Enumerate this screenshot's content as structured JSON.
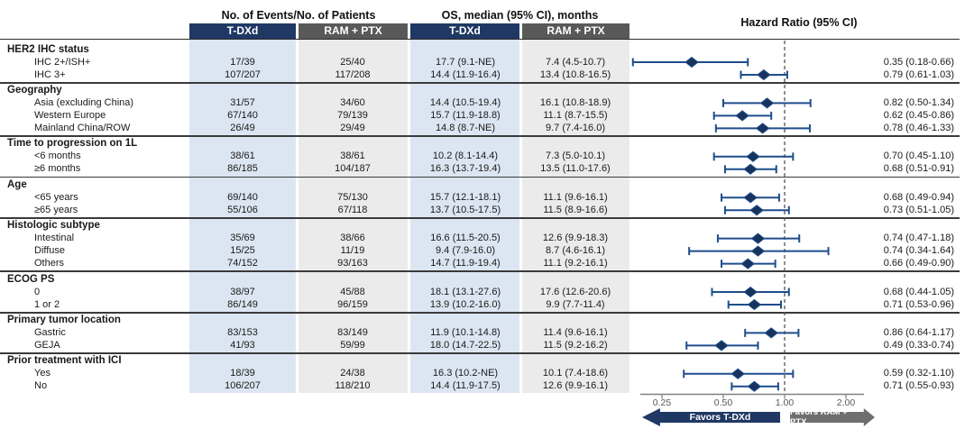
{
  "figure": {
    "events_group_header": "No. of Events/No. of Patients",
    "os_group_header": "OS, median (95% CI), months",
    "hr_header": "Hazard Ratio (95% CI)",
    "arm_tdxd": "T-DXd",
    "arm_ram": "RAM + PTX"
  },
  "axis": {
    "scale": "log",
    "reference_line": 1.0,
    "ticks": [
      0.25,
      0.5,
      1.0,
      2.0
    ],
    "tick_labels": [
      "0.25",
      "0.50",
      "1.00",
      "2.00"
    ]
  },
  "favors": {
    "left": "Favors T-DXd",
    "right": "Favors RAM + PTX"
  },
  "colors": {
    "navy": "#1f3864",
    "header_gray": "#595959",
    "column_light_blue": "#dce6f2",
    "column_light_gray": "#ebebeb",
    "ci_bar": "#1e4d8c",
    "diamond": "#17335d",
    "arrow_gray": "#6e6e6e"
  },
  "sections": [
    {
      "label": "HER2 IHC status",
      "rows": [
        {
          "label": "IHC 2+/ISH+",
          "events_tdxd": "17/39",
          "events_ram": "25/40",
          "os_tdxd": "17.7 (9.1-NE)",
          "os_ram": "7.4 (4.5-10.7)",
          "hr": 0.35,
          "ci": [
            0.18,
            0.66
          ],
          "hr_text": "0.35 (0.18-0.66)"
        },
        {
          "label": "IHC 3+",
          "events_tdxd": "107/207",
          "events_ram": "117/208",
          "os_tdxd": "14.4 (11.9-16.4)",
          "os_ram": "13.4 (10.8-16.5)",
          "hr": 0.79,
          "ci": [
            0.61,
            1.03
          ],
          "hr_text": "0.79 (0.61-1.03)"
        }
      ]
    },
    {
      "label": "Geography",
      "rows": [
        {
          "label": "Asia (excluding China)",
          "events_tdxd": "31/57",
          "events_ram": "34/60",
          "os_tdxd": "14.4 (10.5-19.4)",
          "os_ram": "16.1 (10.8-18.9)",
          "hr": 0.82,
          "ci": [
            0.5,
            1.34
          ],
          "hr_text": "0.82 (0.50-1.34)"
        },
        {
          "label": "Western Europe",
          "events_tdxd": "67/140",
          "events_ram": "79/139",
          "os_tdxd": "15.7 (11.9-18.8)",
          "os_ram": "11.1 (8.7-15.5)",
          "hr": 0.62,
          "ci": [
            0.45,
            0.86
          ],
          "hr_text": "0.62 (0.45-0.86)"
        },
        {
          "label": "Mainland China/ROW",
          "events_tdxd": "26/49",
          "events_ram": "29/49",
          "os_tdxd": "14.8 (8.7-NE)",
          "os_ram": "9.7 (7.4-16.0)",
          "hr": 0.78,
          "ci": [
            0.46,
            1.33
          ],
          "hr_text": "0.78 (0.46-1.33)"
        }
      ]
    },
    {
      "label": "Time to progression on 1L",
      "rows": [
        {
          "label": "<6 months",
          "events_tdxd": "38/61",
          "events_ram": "38/61",
          "os_tdxd": "10.2 (8.1-14.4)",
          "os_ram": "7.3 (5.0-10.1)",
          "hr": 0.7,
          "ci": [
            0.45,
            1.1
          ],
          "hr_text": "0.70 (0.45-1.10)"
        },
        {
          "label": "≥6 months",
          "events_tdxd": "86/185",
          "events_ram": "104/187",
          "os_tdxd": "16.3 (13.7-19.4)",
          "os_ram": "13.5 (11.0-17.6)",
          "hr": 0.68,
          "ci": [
            0.51,
            0.91
          ],
          "hr_text": "0.68 (0.51-0.91)"
        }
      ]
    },
    {
      "label": "Age",
      "rows": [
        {
          "label": "<65 years",
          "events_tdxd": "69/140",
          "events_ram": "75/130",
          "os_tdxd": "15.7 (12.1-18.1)",
          "os_ram": "11.1 (9.6-16.1)",
          "hr": 0.68,
          "ci": [
            0.49,
            0.94
          ],
          "hr_text": "0.68 (0.49-0.94)"
        },
        {
          "label": "≥65 years",
          "events_tdxd": "55/106",
          "events_ram": "67/118",
          "os_tdxd": "13.7 (10.5-17.5)",
          "os_ram": "11.5 (8.9-16.6)",
          "hr": 0.73,
          "ci": [
            0.51,
            1.05
          ],
          "hr_text": "0.73 (0.51-1.05)"
        }
      ]
    },
    {
      "label": "Histologic subtype",
      "rows": [
        {
          "label": "Intestinal",
          "events_tdxd": "35/69",
          "events_ram": "38/66",
          "os_tdxd": "16.6 (11.5-20.5)",
          "os_ram": "12.6 (9.9-18.3)",
          "hr": 0.74,
          "ci": [
            0.47,
            1.18
          ],
          "hr_text": "0.74 (0.47-1.18)"
        },
        {
          "label": "Diffuse",
          "events_tdxd": "15/25",
          "events_ram": "11/19",
          "os_tdxd": "9.4 (7.9-16.0)",
          "os_ram": "8.7 (4.6-16.1)",
          "hr": 0.74,
          "ci": [
            0.34,
            1.64
          ],
          "hr_text": "0.74 (0.34-1.64)"
        },
        {
          "label": "Others",
          "events_tdxd": "74/152",
          "events_ram": "93/163",
          "os_tdxd": "14.7 (11.9-19.4)",
          "os_ram": "11.1 (9.2-16.1)",
          "hr": 0.66,
          "ci": [
            0.49,
            0.9
          ],
          "hr_text": "0.66 (0.49-0.90)"
        }
      ]
    },
    {
      "label": "ECOG PS",
      "rows": [
        {
          "label": "0",
          "events_tdxd": "38/97",
          "events_ram": "45/88",
          "os_tdxd": "18.1 (13.1-27.6)",
          "os_ram": "17.6 (12.6-20.6)",
          "hr": 0.68,
          "ci": [
            0.44,
            1.05
          ],
          "hr_text": "0.68 (0.44-1.05)"
        },
        {
          "label": "1 or 2",
          "events_tdxd": "86/149",
          "events_ram": "96/159",
          "os_tdxd": "13.9 (10.2-16.0)",
          "os_ram": "9.9 (7.7-11.4)",
          "hr": 0.71,
          "ci": [
            0.53,
            0.96
          ],
          "hr_text": "0.71 (0.53-0.96)"
        }
      ]
    },
    {
      "label": "Primary tumor location",
      "rows": [
        {
          "label": "Gastric",
          "events_tdxd": "83/153",
          "events_ram": "83/149",
          "os_tdxd": "11.9 (10.1-14.8)",
          "os_ram": "11.4 (9.6-16.1)",
          "hr": 0.86,
          "ci": [
            0.64,
            1.17
          ],
          "hr_text": "0.86 (0.64-1.17)"
        },
        {
          "label": "GEJA",
          "events_tdxd": "41/93",
          "events_ram": "59/99",
          "os_tdxd": "18.0 (14.7-22.5)",
          "os_ram": "11.5 (9.2-16.2)",
          "hr": 0.49,
          "ci": [
            0.33,
            0.74
          ],
          "hr_text": "0.49 (0.33-0.74)"
        }
      ]
    },
    {
      "label": "Prior treatment with ICI",
      "rows": [
        {
          "label": "Yes",
          "events_tdxd": "18/39",
          "events_ram": "24/38",
          "os_tdxd": "16.3 (10.2-NE)",
          "os_ram": "10.1 (7.4-18.6)",
          "hr": 0.59,
          "ci": [
            0.32,
            1.1
          ],
          "hr_text": "0.59 (0.32-1.10)"
        },
        {
          "label": "No",
          "events_tdxd": "106/207",
          "events_ram": "118/210",
          "os_tdxd": "14.4 (11.9-17.5)",
          "os_ram": "12.6 (9.9-16.1)",
          "hr": 0.71,
          "ci": [
            0.55,
            0.93
          ],
          "hr_text": "0.71 (0.55-0.93)"
        }
      ]
    }
  ],
  "chart_data": {
    "type": "scatter",
    "subtype": "forest-plot",
    "title": "Hazard Ratio (95% CI)",
    "x_scale": "log",
    "x_ticks": [
      0.25,
      0.5,
      1.0,
      2.0
    ],
    "reference_line": 1.0,
    "favors_left": "Favors T-DXd",
    "favors_right": "Favors RAM + PTX",
    "points": [
      {
        "subgroup": "IHC 2+/ISH+",
        "hr": 0.35,
        "ci_low": 0.18,
        "ci_high": 0.66
      },
      {
        "subgroup": "IHC 3+",
        "hr": 0.79,
        "ci_low": 0.61,
        "ci_high": 1.03
      },
      {
        "subgroup": "Asia (excluding China)",
        "hr": 0.82,
        "ci_low": 0.5,
        "ci_high": 1.34
      },
      {
        "subgroup": "Western Europe",
        "hr": 0.62,
        "ci_low": 0.45,
        "ci_high": 0.86
      },
      {
        "subgroup": "Mainland China/ROW",
        "hr": 0.78,
        "ci_low": 0.46,
        "ci_high": 1.33
      },
      {
        "subgroup": "<6 months",
        "hr": 0.7,
        "ci_low": 0.45,
        "ci_high": 1.1
      },
      {
        "subgroup": "≥6 months",
        "hr": 0.68,
        "ci_low": 0.51,
        "ci_high": 0.91
      },
      {
        "subgroup": "<65 years",
        "hr": 0.68,
        "ci_low": 0.49,
        "ci_high": 0.94
      },
      {
        "subgroup": "≥65 years",
        "hr": 0.73,
        "ci_low": 0.51,
        "ci_high": 1.05
      },
      {
        "subgroup": "Intestinal",
        "hr": 0.74,
        "ci_low": 0.47,
        "ci_high": 1.18
      },
      {
        "subgroup": "Diffuse",
        "hr": 0.74,
        "ci_low": 0.34,
        "ci_high": 1.64
      },
      {
        "subgroup": "Others",
        "hr": 0.66,
        "ci_low": 0.49,
        "ci_high": 0.9
      },
      {
        "subgroup": "ECOG PS 0",
        "hr": 0.68,
        "ci_low": 0.44,
        "ci_high": 1.05
      },
      {
        "subgroup": "ECOG PS 1 or 2",
        "hr": 0.71,
        "ci_low": 0.53,
        "ci_high": 0.96
      },
      {
        "subgroup": "Gastric",
        "hr": 0.86,
        "ci_low": 0.64,
        "ci_high": 1.17
      },
      {
        "subgroup": "GEJA",
        "hr": 0.49,
        "ci_low": 0.33,
        "ci_high": 0.74
      },
      {
        "subgroup": "Prior ICI Yes",
        "hr": 0.59,
        "ci_low": 0.32,
        "ci_high": 1.1
      },
      {
        "subgroup": "Prior ICI No",
        "hr": 0.71,
        "ci_low": 0.55,
        "ci_high": 0.93
      }
    ]
  }
}
